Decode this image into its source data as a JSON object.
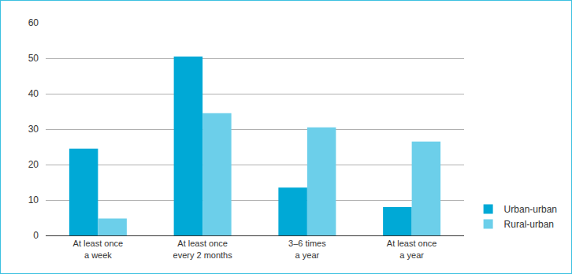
{
  "chart_data": {
    "type": "bar",
    "categories": [
      "At least once\na week",
      "At least once\nevery 2 months",
      "3–6 times\na year",
      "At least once\na year"
    ],
    "series": [
      {
        "name": "Urban-urban",
        "color": "#00a9d6",
        "values": [
          24.5,
          50.5,
          13.5,
          8
        ]
      },
      {
        "name": "Rural-urban",
        "color": "#6ccfea",
        "values": [
          4.8,
          34.5,
          30.5,
          26.5
        ]
      }
    ],
    "ylim": [
      0,
      60
    ],
    "yticks": [
      0,
      10,
      20,
      30,
      40,
      50,
      60
    ],
    "grid": true,
    "legend": "lower right"
  }
}
